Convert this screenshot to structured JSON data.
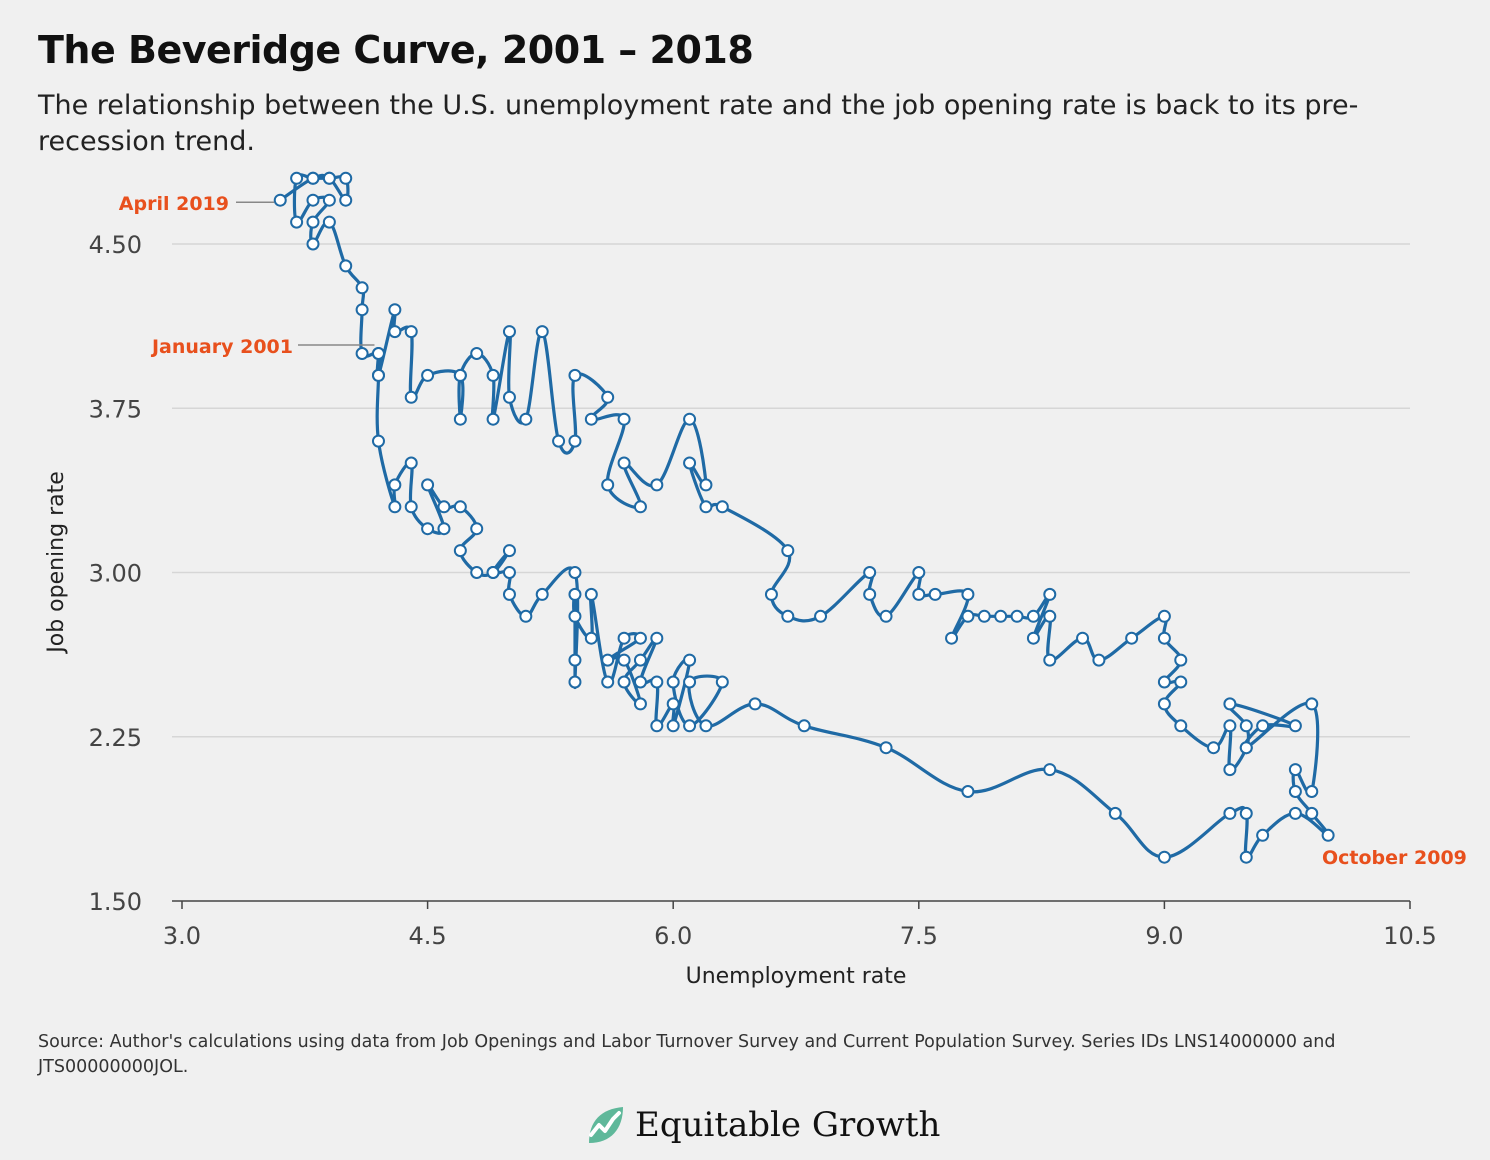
{
  "header": {
    "title": "The Beveridge Curve, 2001 – 2018",
    "subtitle": "The relationship between the U.S. unemployment rate and the job opening rate is back to its pre-recession trend."
  },
  "footer": {
    "source": "Source: Author's calculations using data from Job Openings and Labor Turnover Survey and Current Population Survey. Series IDs LNS14000000 and JTS00000000JOL.",
    "logo_text": "Equitable Growth",
    "logo_icon": "rising-line-leaf-icon"
  },
  "colors": {
    "series": "#1f6aa5",
    "annotation": "#e8501d",
    "grid": "#d6d6d6",
    "axis": "#555555",
    "logo_green": "#5fb89a"
  },
  "chart_data": {
    "type": "line",
    "xlabel": "Unemployment rate",
    "ylabel": "Job opening rate",
    "xlim": [
      3.0,
      10.5
    ],
    "ylim": [
      1.5,
      4.8
    ],
    "x_ticks": [
      "3.0",
      "4.5",
      "6.0",
      "7.5",
      "9.0",
      "10.5"
    ],
    "y_ticks": [
      "1.50",
      "2.25",
      "3.00",
      "3.75",
      "4.50"
    ],
    "grid": "horizontal",
    "markers": true,
    "annotations": [
      {
        "label": "April 2019",
        "x": 3.6,
        "y": 4.7
      },
      {
        "label": "January 2001",
        "x": 4.2,
        "y": 4.0
      },
      {
        "label": "October 2009",
        "x": 10.0,
        "y": 1.8
      }
    ],
    "series": [
      {
        "points": [
          [
            4.2,
            4.0
          ],
          [
            4.2,
            3.9
          ],
          [
            4.3,
            4.2
          ],
          [
            4.3,
            4.1
          ],
          [
            4.4,
            4.1
          ],
          [
            4.4,
            3.8
          ],
          [
            4.5,
            3.9
          ],
          [
            4.7,
            3.9
          ],
          [
            4.7,
            3.7
          ],
          [
            4.7,
            3.9
          ],
          [
            4.8,
            4.0
          ],
          [
            4.9,
            3.9
          ],
          [
            4.9,
            3.7
          ],
          [
            5.0,
            4.1
          ],
          [
            5.0,
            3.8
          ],
          [
            5.1,
            3.7
          ],
          [
            5.2,
            4.1
          ],
          [
            5.3,
            3.6
          ],
          [
            5.4,
            3.6
          ],
          [
            5.4,
            3.9
          ],
          [
            5.6,
            3.8
          ],
          [
            5.5,
            3.7
          ],
          [
            5.7,
            3.7
          ],
          [
            5.6,
            3.4
          ],
          [
            5.8,
            3.3
          ],
          [
            5.7,
            3.5
          ],
          [
            5.9,
            3.4
          ],
          [
            6.1,
            3.7
          ],
          [
            6.2,
            3.4
          ],
          [
            6.1,
            3.5
          ],
          [
            6.2,
            3.3
          ],
          [
            6.3,
            3.3
          ],
          [
            6.7,
            3.1
          ],
          [
            6.6,
            2.9
          ],
          [
            6.7,
            2.8
          ],
          [
            6.9,
            2.8
          ],
          [
            7.2,
            3.0
          ],
          [
            7.2,
            2.9
          ],
          [
            7.3,
            2.8
          ],
          [
            7.5,
            3.0
          ],
          [
            7.5,
            2.9
          ],
          [
            7.6,
            2.9
          ],
          [
            7.8,
            2.9
          ],
          [
            7.7,
            2.7
          ],
          [
            7.8,
            2.8
          ],
          [
            7.9,
            2.8
          ],
          [
            8.0,
            2.8
          ],
          [
            8.1,
            2.8
          ],
          [
            8.2,
            2.8
          ],
          [
            8.3,
            2.9
          ],
          [
            8.2,
            2.7
          ],
          [
            8.3,
            2.8
          ],
          [
            8.3,
            2.6
          ],
          [
            8.5,
            2.7
          ],
          [
            8.6,
            2.6
          ],
          [
            8.8,
            2.7
          ],
          [
            9.0,
            2.8
          ],
          [
            9.0,
            2.7
          ],
          [
            9.1,
            2.6
          ],
          [
            9.0,
            2.5
          ],
          [
            9.1,
            2.5
          ],
          [
            9.0,
            2.4
          ],
          [
            9.1,
            2.3
          ],
          [
            9.3,
            2.2
          ],
          [
            9.4,
            2.3
          ],
          [
            9.4,
            2.1
          ],
          [
            9.5,
            2.2
          ],
          [
            9.5,
            2.3
          ],
          [
            9.4,
            2.4
          ],
          [
            9.8,
            2.3
          ],
          [
            9.6,
            2.3
          ],
          [
            9.5,
            2.2
          ],
          [
            9.9,
            2.4
          ],
          [
            9.9,
            2.0
          ],
          [
            9.8,
            2.1
          ],
          [
            9.8,
            2.0
          ],
          [
            9.9,
            1.9
          ],
          [
            10.0,
            1.8
          ],
          [
            9.8,
            1.9
          ],
          [
            9.6,
            1.8
          ],
          [
            9.5,
            1.7
          ],
          [
            9.5,
            1.9
          ],
          [
            9.4,
            1.9
          ],
          [
            9.0,
            1.7
          ],
          [
            8.7,
            1.9
          ],
          [
            8.3,
            2.1
          ],
          [
            7.8,
            2.0
          ],
          [
            7.3,
            2.2
          ],
          [
            6.8,
            2.3
          ],
          [
            6.5,
            2.4
          ],
          [
            6.2,
            2.3
          ],
          [
            6.1,
            2.5
          ],
          [
            6.3,
            2.5
          ],
          [
            6.1,
            2.3
          ],
          [
            6.0,
            2.5
          ],
          [
            6.1,
            2.6
          ],
          [
            6.0,
            2.3
          ],
          [
            6.0,
            2.4
          ],
          [
            5.9,
            2.3
          ],
          [
            5.9,
            2.5
          ],
          [
            5.8,
            2.5
          ],
          [
            5.9,
            2.7
          ],
          [
            5.8,
            2.6
          ],
          [
            5.7,
            2.5
          ],
          [
            5.8,
            2.4
          ],
          [
            5.7,
            2.6
          ],
          [
            5.6,
            2.6
          ],
          [
            5.8,
            2.7
          ],
          [
            5.7,
            2.7
          ],
          [
            5.6,
            2.5
          ],
          [
            5.5,
            2.9
          ],
          [
            5.5,
            2.7
          ],
          [
            5.4,
            2.8
          ],
          [
            5.4,
            2.9
          ],
          [
            5.4,
            2.6
          ],
          [
            5.4,
            2.5
          ],
          [
            5.4,
            3.0
          ],
          [
            5.2,
            2.9
          ],
          [
            5.1,
            2.8
          ],
          [
            5.0,
            2.9
          ],
          [
            5.0,
            3.0
          ],
          [
            4.9,
            3.0
          ],
          [
            5.0,
            3.1
          ],
          [
            4.9,
            3.0
          ],
          [
            4.8,
            3.0
          ],
          [
            4.7,
            3.1
          ],
          [
            4.8,
            3.2
          ],
          [
            4.7,
            3.3
          ],
          [
            4.6,
            3.3
          ],
          [
            4.5,
            3.4
          ],
          [
            4.6,
            3.2
          ],
          [
            4.5,
            3.2
          ],
          [
            4.4,
            3.3
          ],
          [
            4.4,
            3.5
          ],
          [
            4.3,
            3.4
          ],
          [
            4.3,
            3.3
          ],
          [
            4.2,
            3.6
          ],
          [
            4.2,
            3.9
          ],
          [
            4.2,
            4.0
          ],
          [
            4.1,
            4.0
          ],
          [
            4.1,
            4.2
          ],
          [
            4.1,
            4.3
          ],
          [
            4.0,
            4.4
          ],
          [
            3.9,
            4.6
          ],
          [
            3.8,
            4.5
          ],
          [
            3.8,
            4.6
          ],
          [
            3.9,
            4.7
          ],
          [
            3.8,
            4.7
          ],
          [
            3.7,
            4.6
          ],
          [
            3.7,
            4.8
          ],
          [
            3.8,
            4.8
          ],
          [
            3.9,
            4.8
          ],
          [
            4.0,
            4.8
          ],
          [
            4.0,
            4.7
          ],
          [
            3.9,
            4.8
          ],
          [
            3.8,
            4.8
          ],
          [
            3.6,
            4.7
          ]
        ]
      }
    ]
  }
}
